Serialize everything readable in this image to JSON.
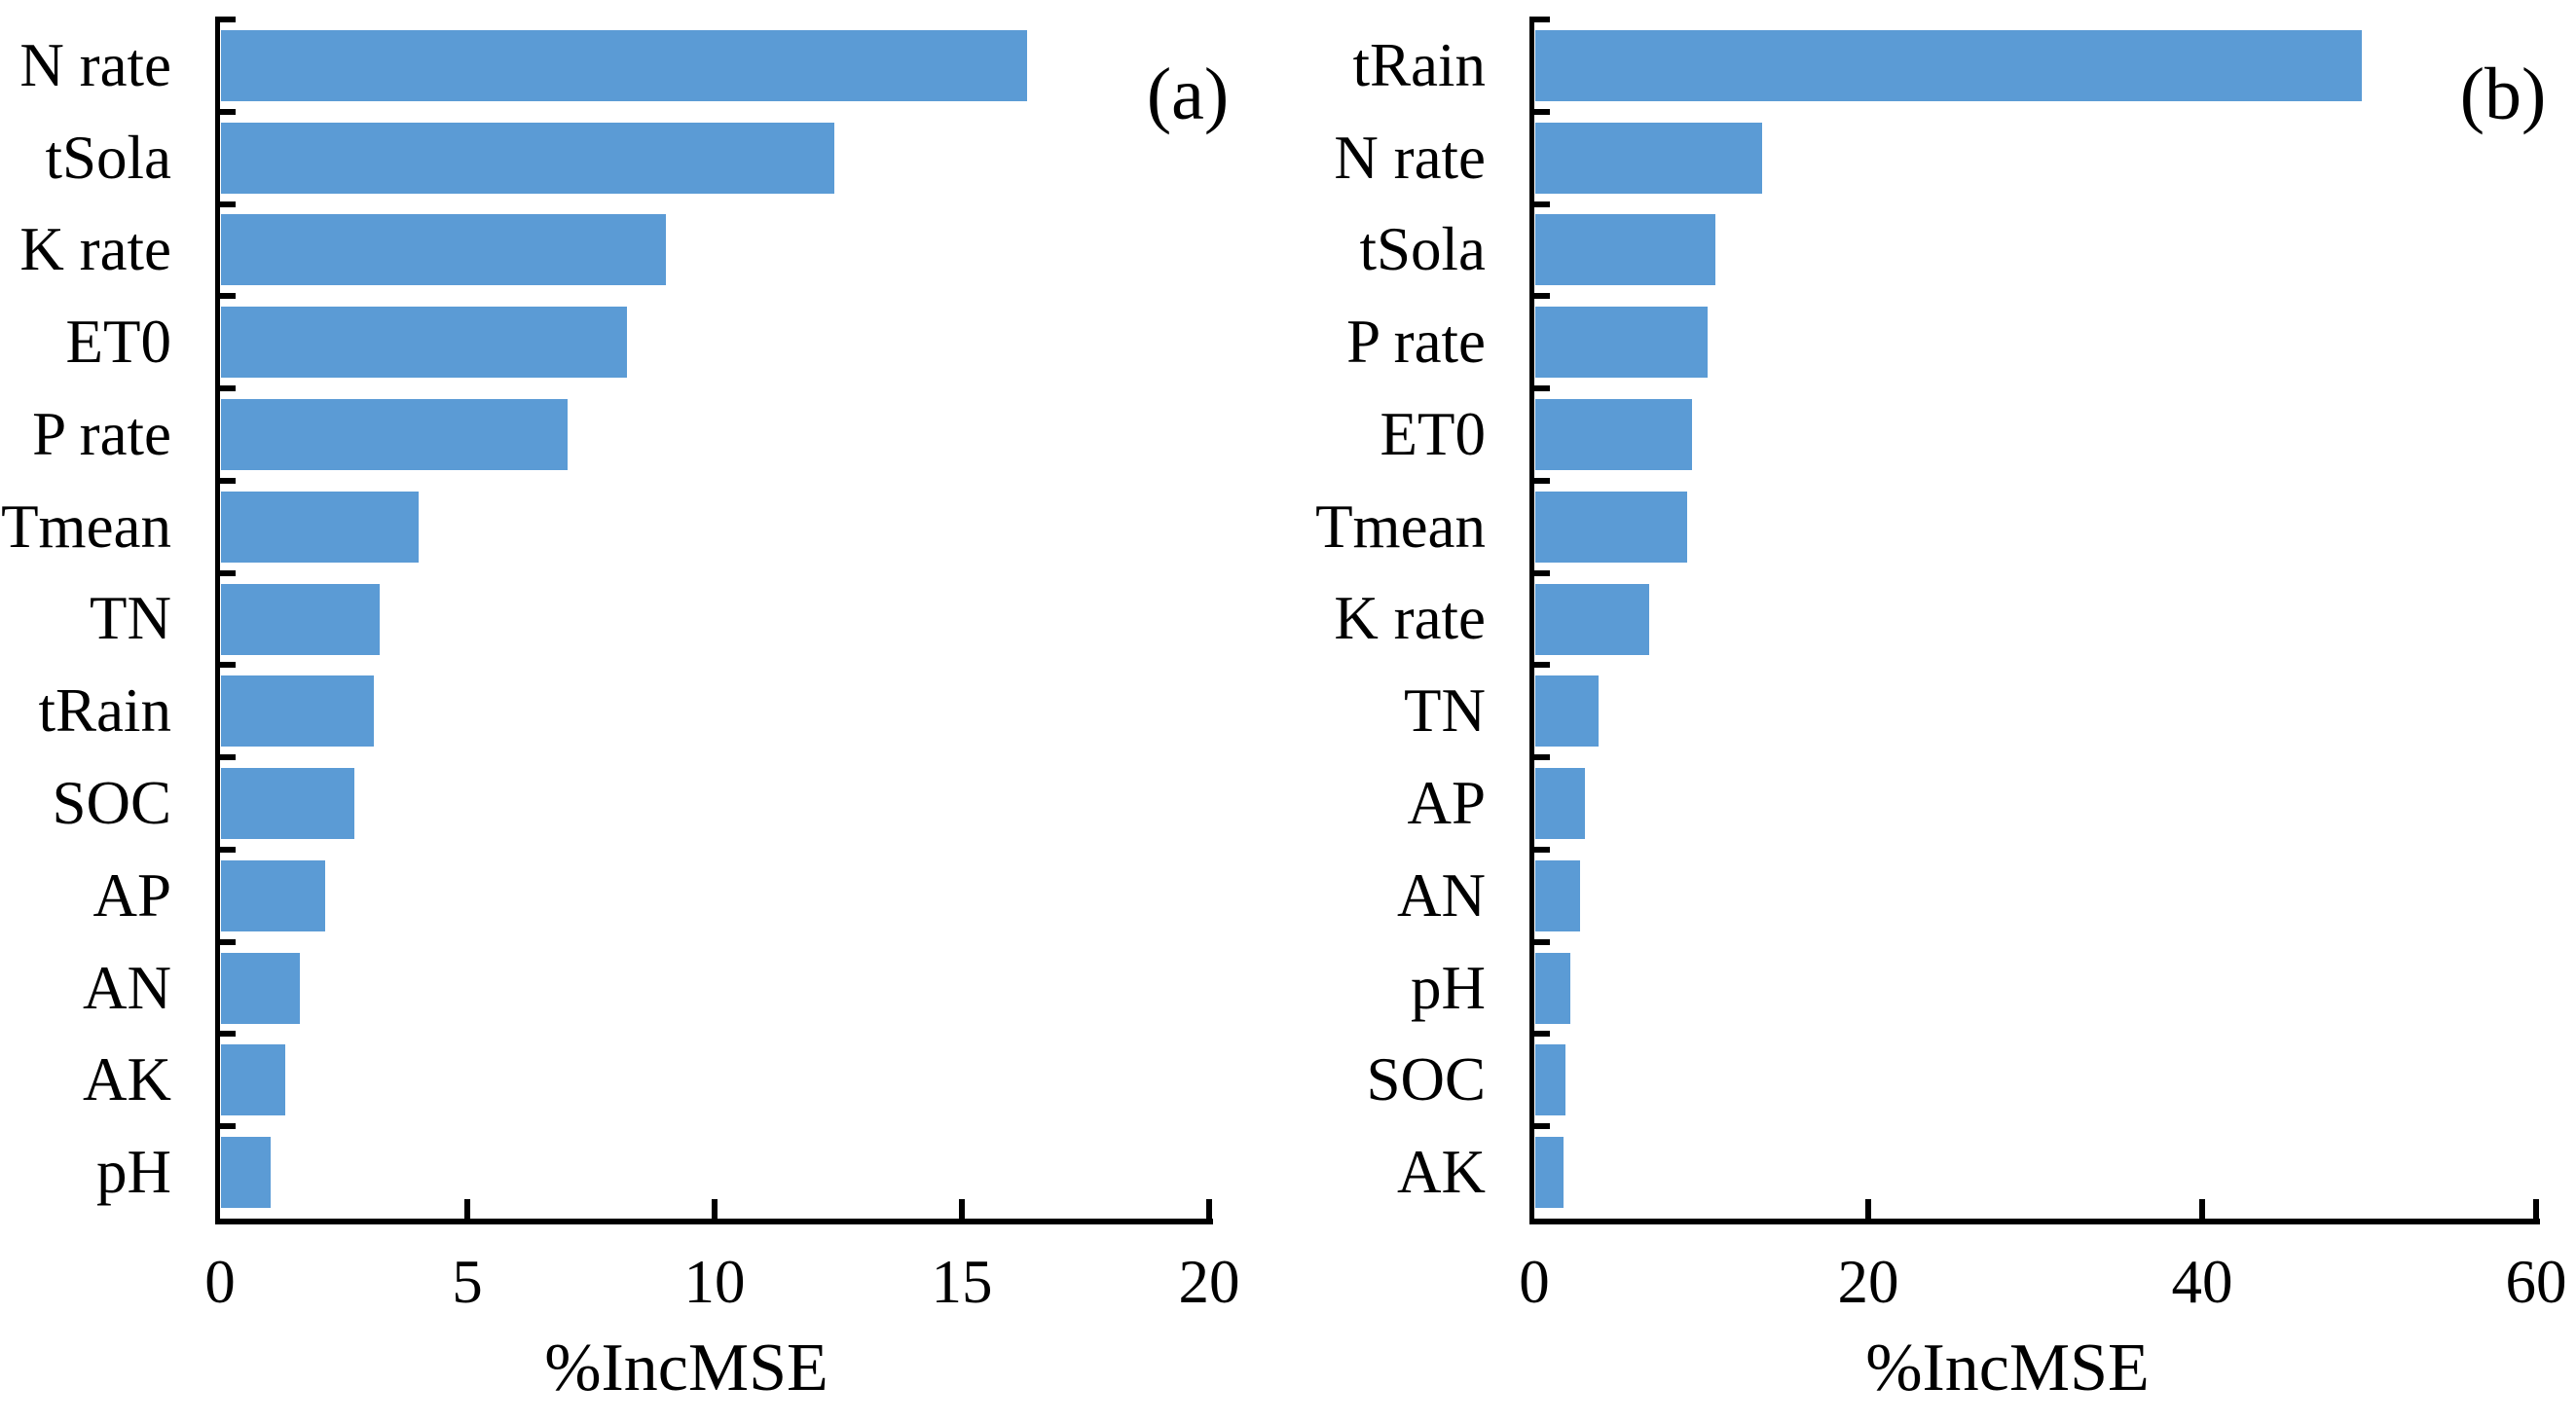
{
  "figure": {
    "background_color": "#FFFFFF",
    "bar_color": "#5B9BD5",
    "axis_color": "#000000",
    "text_color": "#000000"
  },
  "chart_data": [
    {
      "type": "bar",
      "orientation": "horizontal",
      "panel_label": "(a)",
      "xlabel": "%IncMSE",
      "xlim": [
        0,
        20
      ],
      "xticks": [
        0,
        5,
        10,
        15,
        20
      ],
      "grid": false,
      "legend": null,
      "categories": [
        "N rate",
        "tSola",
        "K rate",
        "ET0",
        "P rate",
        "Tmean",
        "TN",
        "tRain",
        "SOC",
        "AP",
        "AN",
        "AK",
        "pH"
      ],
      "values": [
        16.3,
        12.4,
        9.0,
        8.2,
        7.0,
        4.0,
        3.2,
        3.1,
        2.7,
        2.1,
        1.6,
        1.3,
        1.0
      ]
    },
    {
      "type": "bar",
      "orientation": "horizontal",
      "panel_label": "(b)",
      "xlabel": "%IncMSE",
      "xlim": [
        0,
        60
      ],
      "xticks": [
        0,
        20,
        40,
        60
      ],
      "grid": false,
      "legend": null,
      "categories": [
        "tRain",
        "N rate",
        "tSola",
        "P rate",
        "ET0",
        "Tmean",
        "K rate",
        "TN",
        "AP",
        "AN",
        "pH",
        "SOC",
        "AK"
      ],
      "values": [
        49.5,
        13.6,
        10.8,
        10.3,
        9.4,
        9.1,
        6.8,
        3.8,
        3.0,
        2.7,
        2.1,
        1.8,
        1.7
      ]
    }
  ]
}
